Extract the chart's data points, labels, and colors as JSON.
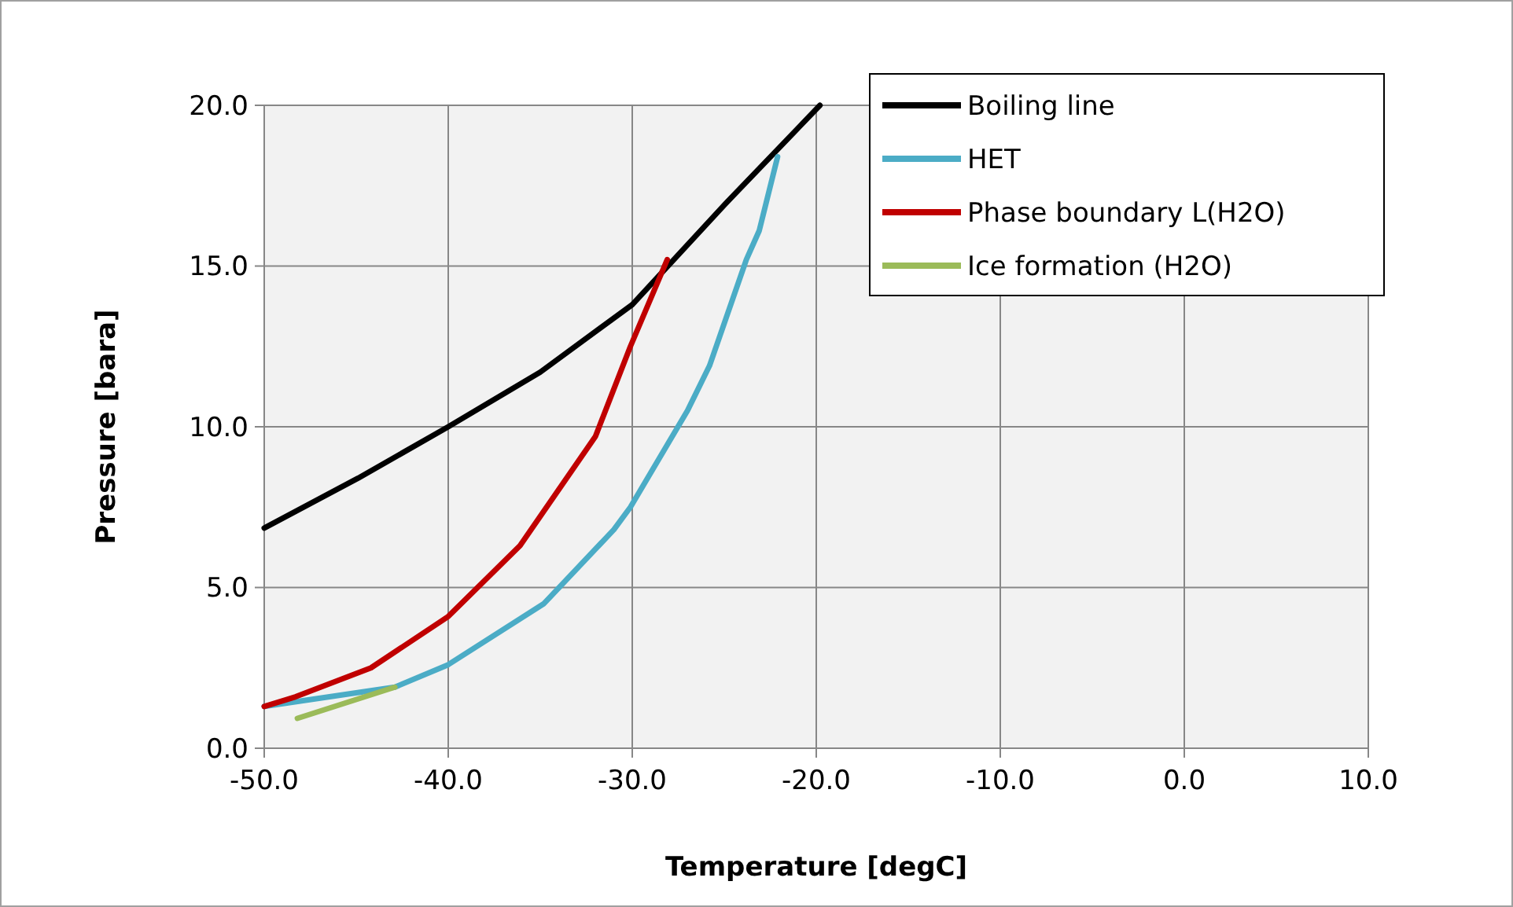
{
  "chart_data": {
    "type": "line",
    "xlabel": "Temperature [degC]",
    "ylabel": "Pressure [bara]",
    "xlim": [
      -50,
      10
    ],
    "ylim": [
      0,
      20
    ],
    "xticks": [
      {
        "value": -50,
        "label": "-50.0"
      },
      {
        "value": -40,
        "label": "-40.0"
      },
      {
        "value": -30,
        "label": "-30.0"
      },
      {
        "value": -20,
        "label": "-20.0"
      },
      {
        "value": -10,
        "label": "-10.0"
      },
      {
        "value": 0,
        "label": "0.0"
      },
      {
        "value": 10,
        "label": "10.0"
      }
    ],
    "yticks": [
      {
        "value": 0,
        "label": "0.0"
      },
      {
        "value": 5,
        "label": "5.0"
      },
      {
        "value": 10,
        "label": "10.0"
      },
      {
        "value": 15,
        "label": "15.0"
      },
      {
        "value": 20,
        "label": "20.0"
      }
    ],
    "grid": true,
    "legend": "top right",
    "marker": "none",
    "line_style": "solid",
    "series": [
      {
        "name": "Boiling line",
        "color": "#000000",
        "x": [
          -50,
          -44.9,
          -40,
          -35,
          -30,
          -25,
          -19.8
        ],
        "values": [
          6.85,
          8.4,
          10.0,
          11.7,
          13.8,
          16.9,
          20.0
        ]
      },
      {
        "name": "HET",
        "color": "#4bacc6",
        "x": [
          -50,
          -42.9,
          -40,
          -34.8,
          -31,
          -30.1,
          -27,
          -25.8,
          -23.8,
          -23.1,
          -22.1
        ],
        "values": [
          1.3,
          1.9,
          2.6,
          4.5,
          6.8,
          7.5,
          10.5,
          11.9,
          15.2,
          16.1,
          18.4
        ]
      },
      {
        "name": "Phase boundary L(H2O)",
        "color": "#c00000",
        "x": [
          -50,
          -48.3,
          -44.2,
          -40,
          -36.1,
          -32,
          -30.1,
          -28.1
        ],
        "values": [
          1.3,
          1.6,
          2.5,
          4.1,
          6.3,
          9.7,
          12.5,
          15.2
        ]
      },
      {
        "name": "Ice formation (H2O)",
        "color": "#9bbb59",
        "x": [
          -48.2,
          -42.9
        ],
        "values": [
          0.93,
          1.9
        ]
      }
    ]
  }
}
